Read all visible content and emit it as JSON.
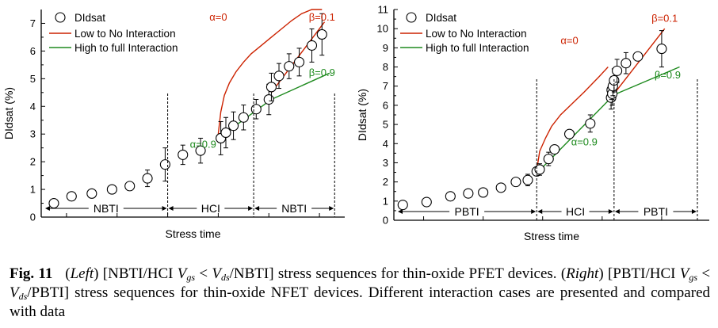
{
  "chart_data": [
    {
      "type": "scatter",
      "log_x": true,
      "xlabel": "Stress time",
      "ylabel": "DIdsat (%)",
      "ylim": [
        0,
        7.5
      ],
      "yticks": [
        "0",
        "1",
        "2",
        "3",
        "4",
        "5",
        "6",
        "7"
      ],
      "grid": false,
      "legend_position": "top-left",
      "legend": [
        "DIdsat",
        "Low to No Interaction",
        "High to full Interaction"
      ],
      "colors": {
        "low": "#cc2200",
        "high": "#1e8a1e",
        "data": "#000000"
      },
      "phases": [
        {
          "label": "NBTI",
          "x_start": 0.01,
          "x_end": 2.5
        },
        {
          "label": "HCI",
          "x_start": 2.5,
          "x_end": 4.2
        },
        {
          "label": "NBTI",
          "x_start": 4.2,
          "x_end": 5.8
        }
      ],
      "annotations": [
        {
          "text": "α=0",
          "series": "low",
          "x": 3.5,
          "y": 7.1
        },
        {
          "text": "β=0.1",
          "series": "low",
          "x": 5.55,
          "y": 7.1
        },
        {
          "text": "β=0.9",
          "series": "high",
          "x": 5.55,
          "y": 5.1
        },
        {
          "text": "α=0.9",
          "series": "high",
          "x": 3.2,
          "y": 2.5
        }
      ],
      "points": [
        {
          "x": 0.25,
          "y": 0.5,
          "err": 0.12
        },
        {
          "x": 0.6,
          "y": 0.75,
          "err": 0.15
        },
        {
          "x": 1.0,
          "y": 0.85,
          "err": 0.08
        },
        {
          "x": 1.4,
          "y": 1.0,
          "err": 0.1
        },
        {
          "x": 1.75,
          "y": 1.12,
          "err": 0.12
        },
        {
          "x": 2.1,
          "y": 1.4,
          "err": 0.3
        },
        {
          "x": 2.45,
          "y": 1.9,
          "err": 0.6
        },
        {
          "x": 2.8,
          "y": 2.25,
          "err": 0.35
        },
        {
          "x": 3.15,
          "y": 2.4,
          "err": 0.45
        },
        {
          "x": 3.55,
          "y": 2.85,
          "err": 0.6
        },
        {
          "x": 3.65,
          "y": 3.05,
          "err": 0.55
        },
        {
          "x": 3.8,
          "y": 3.3,
          "err": 0.5
        },
        {
          "x": 4.0,
          "y": 3.6,
          "err": 0.45
        },
        {
          "x": 4.25,
          "y": 3.9,
          "err": 0.35
        },
        {
          "x": 4.5,
          "y": 4.25,
          "err": 0.55
        },
        {
          "x": 4.55,
          "y": 4.7,
          "err": 0.5
        },
        {
          "x": 4.7,
          "y": 5.1,
          "err": 0.45
        },
        {
          "x": 4.9,
          "y": 5.45,
          "err": 0.45
        },
        {
          "x": 5.1,
          "y": 5.6,
          "err": 0.5
        },
        {
          "x": 5.35,
          "y": 6.2,
          "err": 0.6
        },
        {
          "x": 5.55,
          "y": 6.6,
          "err": 0.75
        }
      ],
      "series": [
        {
          "name": "Low to No Interaction",
          "color": "#cc2200",
          "x": [
            3.5,
            3.55,
            3.62,
            3.72,
            3.85,
            4.0,
            4.15,
            4.35,
            4.55,
            4.75,
            4.95,
            5.15,
            5.35,
            5.55
          ],
          "y": [
            3.0,
            3.8,
            4.4,
            4.85,
            5.25,
            5.6,
            5.9,
            6.2,
            6.5,
            6.8,
            7.1,
            7.35,
            7.5,
            7.5
          ]
        },
        {
          "name": "Low to No Interaction",
          "color": "#cc2200",
          "x": [
            4.55,
            5.6
          ],
          "y": [
            4.5,
            7.05
          ]
        },
        {
          "name": "High to full Interaction",
          "color": "#1e8a1e",
          "x": [
            3.5,
            4.55
          ],
          "y": [
            2.85,
            4.25
          ]
        },
        {
          "name": "High to full Interaction",
          "color": "#1e8a1e",
          "x": [
            4.55,
            5.7
          ],
          "y": [
            4.25,
            5.2
          ]
        }
      ]
    },
    {
      "type": "scatter",
      "log_x": true,
      "xlabel": "Stress time",
      "ylabel": "DIdsat (%)",
      "ylim": [
        0,
        11
      ],
      "yticks": [
        "0",
        "1",
        "2",
        "3",
        "4",
        "5",
        "6",
        "7",
        "8",
        "9",
        "10",
        "11"
      ],
      "grid": false,
      "legend_position": "top-left",
      "legend": [
        "DIdsat",
        "Low to No Interaction",
        "High to full Interaction"
      ],
      "colors": {
        "low": "#cc2200",
        "high": "#1e8a1e",
        "data": "#000000"
      },
      "phases": [
        {
          "label": "PBTI",
          "x_start": 0.01,
          "x_end": 2.4
        },
        {
          "label": "HCI",
          "x_start": 2.4,
          "x_end": 3.7
        },
        {
          "label": "PBTI",
          "x_start": 3.7,
          "x_end": 5.1
        }
      ],
      "annotations": [
        {
          "text": "α=0",
          "series": "low",
          "x": 2.95,
          "y": 9.2
        },
        {
          "text": "β=0.1",
          "series": "low",
          "x": 4.55,
          "y": 10.35
        },
        {
          "text": "β=0.9",
          "series": "high",
          "x": 4.6,
          "y": 7.4
        },
        {
          "text": "α=0.9",
          "series": "high",
          "x": 3.2,
          "y": 3.9
        }
      ],
      "points": [
        {
          "x": 0.15,
          "y": 0.8,
          "err": 0.15
        },
        {
          "x": 0.55,
          "y": 0.95,
          "err": 0.15
        },
        {
          "x": 0.95,
          "y": 1.25,
          "err": 0.1
        },
        {
          "x": 1.25,
          "y": 1.4,
          "err": 0.1
        },
        {
          "x": 1.5,
          "y": 1.45,
          "err": 0.1
        },
        {
          "x": 1.8,
          "y": 1.7,
          "err": 0.1
        },
        {
          "x": 2.05,
          "y": 2.0,
          "err": 0.1
        },
        {
          "x": 2.25,
          "y": 2.1,
          "err": 0.3
        },
        {
          "x": 2.4,
          "y": 2.55,
          "err": 0.2
        },
        {
          "x": 2.45,
          "y": 2.65,
          "err": 0.3
        },
        {
          "x": 2.6,
          "y": 3.2,
          "err": 0.35
        },
        {
          "x": 2.7,
          "y": 3.7,
          "err": 0.2
        },
        {
          "x": 2.95,
          "y": 4.5,
          "err": 0.1
        },
        {
          "x": 3.3,
          "y": 5.05,
          "err": 0.45
        },
        {
          "x": 3.65,
          "y": 6.4,
          "err": 0.6
        },
        {
          "x": 3.66,
          "y": 6.8,
          "err": 0.5
        },
        {
          "x": 3.67,
          "y": 6.6,
          "err": 0.6
        },
        {
          "x": 3.68,
          "y": 7.0,
          "err": 0.5
        },
        {
          "x": 3.7,
          "y": 7.3,
          "err": 0.6
        },
        {
          "x": 3.75,
          "y": 7.8,
          "err": 0.6
        },
        {
          "x": 3.9,
          "y": 8.2,
          "err": 0.55
        },
        {
          "x": 4.1,
          "y": 8.55,
          "err": 0.1
        },
        {
          "x": 4.5,
          "y": 8.95,
          "err": 0.95
        }
      ],
      "series": [
        {
          "name": "Low to No Interaction",
          "color": "#cc2200",
          "x": [
            2.4,
            2.45,
            2.55,
            2.65,
            2.8,
            3.0,
            3.2,
            3.45,
            3.6
          ],
          "y": [
            2.6,
            3.6,
            4.3,
            4.9,
            5.5,
            6.1,
            6.7,
            7.5,
            8.0
          ]
        },
        {
          "name": "Low to No Interaction",
          "color": "#cc2200",
          "x": [
            3.7,
            4.55
          ],
          "y": [
            6.6,
            10.0
          ]
        },
        {
          "name": "High to full Interaction",
          "color": "#1e8a1e",
          "x": [
            2.4,
            3.7
          ],
          "y": [
            2.45,
            6.55
          ]
        },
        {
          "name": "High to full Interaction",
          "color": "#1e8a1e",
          "x": [
            3.7,
            4.8
          ],
          "y": [
            6.55,
            8.0
          ]
        }
      ]
    }
  ],
  "caption": {
    "fig_label": "Fig. 11",
    "left_tag": "Left",
    "part1a": "[NBTI/HCI ",
    "v_gs": "V",
    "sub_gs": "gs",
    "lt": " < ",
    "v_ds": "V",
    "sub_ds": "ds",
    "part1b": "/NBTI] stress sequences for thin-oxide PFET devices. (",
    "right_tag": "Right",
    "part2a": ") [PBTI/HCI ",
    "part2b": "/PBTI] stress sequences for thin-oxide NFET devices. Different interaction cases are presented and compared with data"
  }
}
